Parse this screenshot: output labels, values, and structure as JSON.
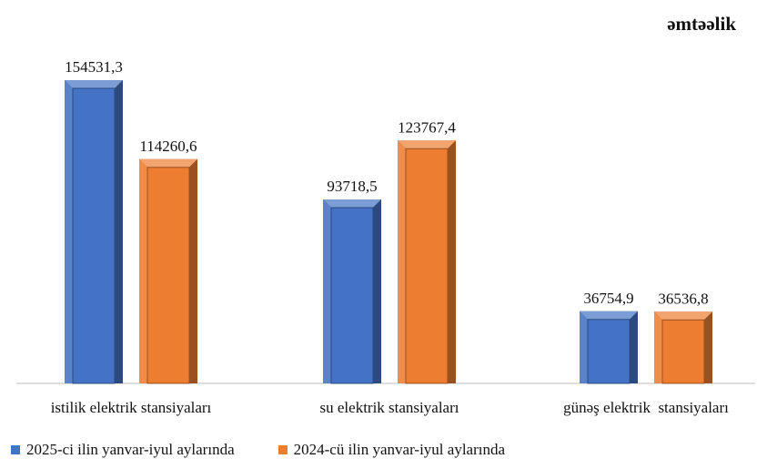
{
  "chart_data": {
    "type": "bar",
    "title": "",
    "unit": "əmtəəlik",
    "categories": [
      "istilik elektrik stansiyaları",
      "su elektrik stansiyaları",
      "günəş elektrik  stansiyaları"
    ],
    "series": [
      {
        "name": "2025-ci ilin yanvar-iyul aylarında",
        "color": "#4472C4",
        "values": [
          154531.3,
          93718.5,
          36754.9
        ],
        "labels": [
          "154531,3",
          "93718,5",
          "36754,9"
        ]
      },
      {
        "name": "2024-cü ilin yanvar-iyul aylarında",
        "color": "#ED7D31",
        "values": [
          114260.6,
          123767.4,
          36536.8
        ],
        "labels": [
          "114260,6",
          "123767,4",
          "36536,8"
        ]
      }
    ],
    "ylim": [
      0,
      154531.3
    ],
    "grid": false,
    "legend_position": "bottom-left"
  }
}
